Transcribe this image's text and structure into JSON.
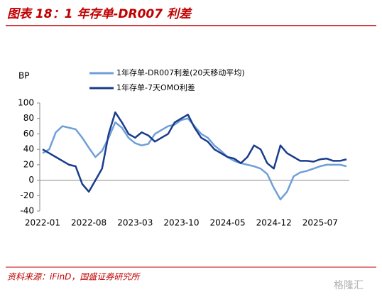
{
  "chart_data": {
    "type": "line",
    "title": "图表 18：1 年存单-DR007 利差",
    "y_label": "BP",
    "source": "资料来源：iFinD，国盛证券研究所",
    "watermark": "格隆汇",
    "x": [
      "2022-01",
      "2022-02",
      "2022-03",
      "2022-04",
      "2022-05",
      "2022-06",
      "2022-07",
      "2022-08",
      "2022-09",
      "2022-10",
      "2022-11",
      "2022-12",
      "2023-01",
      "2023-02",
      "2023-03",
      "2023-04",
      "2023-05",
      "2023-06",
      "2023-07",
      "2023-08",
      "2023-09",
      "2023-10",
      "2023-11",
      "2023-12",
      "2024-01",
      "2024-02",
      "2024-03",
      "2024-04",
      "2024-05",
      "2024-06",
      "2024-07",
      "2024-08",
      "2024-09",
      "2024-10",
      "2024-11",
      "2024-12",
      "2025-01",
      "2025-02",
      "2025-03",
      "2025-04",
      "2025-05",
      "2025-06",
      "2025-07",
      "2025-08",
      "2025-09",
      "2025-10",
      "2025-11"
    ],
    "xticks": [
      "2022-01",
      "2022-08",
      "2023-03",
      "2023-10",
      "2024-05",
      "2024-12",
      "2025-07"
    ],
    "ylim": [
      -40,
      100
    ],
    "yticks": [
      -40,
      -20,
      0,
      20,
      40,
      60,
      80,
      100
    ],
    "series": [
      {
        "name": "1年存单-DR007利差(20天移动平均)",
        "color": "#6f9fd8",
        "values": [
          35,
          40,
          62,
          70,
          68,
          66,
          55,
          42,
          30,
          38,
          55,
          75,
          68,
          55,
          48,
          45,
          47,
          60,
          65,
          70,
          72,
          78,
          80,
          70,
          60,
          55,
          45,
          38,
          30,
          25,
          22,
          20,
          18,
          15,
          8,
          -10,
          -25,
          -15,
          5,
          10,
          12,
          15,
          18,
          20,
          20,
          20,
          18
        ]
      },
      {
        "name": "1年存单-7天OMO利差",
        "color": "#1a3c8c",
        "values": [
          40,
          35,
          30,
          25,
          20,
          18,
          -5,
          -15,
          0,
          15,
          60,
          88,
          75,
          60,
          55,
          62,
          58,
          50,
          55,
          60,
          75,
          80,
          85,
          68,
          55,
          50,
          40,
          35,
          30,
          28,
          22,
          30,
          45,
          40,
          22,
          15,
          45,
          35,
          30,
          25,
          25,
          24,
          27,
          28,
          25,
          25,
          27
        ]
      }
    ]
  }
}
